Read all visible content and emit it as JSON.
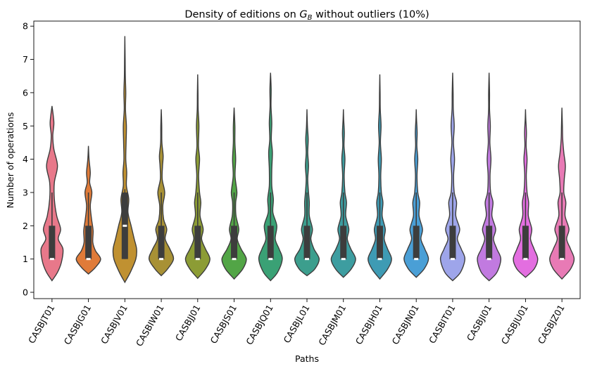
{
  "chart_data": {
    "type": "violin",
    "title_prefix": "Density of editions on ",
    "title_symbol_main": "G",
    "title_symbol_sub": "B",
    "title_suffix": " without outliers (10%)",
    "xlabel": "Paths",
    "ylabel": "Number of operations",
    "ylim": [
      0,
      8
    ],
    "yticks": [
      0,
      1,
      2,
      3,
      4,
      5,
      6,
      7,
      8
    ],
    "grid": false,
    "categories": [
      "CASBJT01",
      "CASBJG01",
      "CASBJV01",
      "CASBIW01",
      "CASBJJ01",
      "CASBJS01",
      "CASBJQ01",
      "CASBJL01",
      "CASBJM01",
      "CASBJH01",
      "CASBJN01",
      "CASBIT01",
      "CASBJI01",
      "CASBJU01",
      "CASBJZ01"
    ],
    "colors": [
      "#e8788a",
      "#e07b39",
      "#c09131",
      "#a89135",
      "#8c9c35",
      "#52a546",
      "#3aa175",
      "#3c9e8d",
      "#3d9da0",
      "#3e9bb4",
      "#4a9fd6",
      "#9ea5ea",
      "#c17ae0",
      "#e36ee0",
      "#e87ab5"
    ],
    "violins": [
      {
        "min": 0.35,
        "max": 5.6,
        "q1": 1,
        "median": 1,
        "q3": 2,
        "whisker_high": 3,
        "density": [
          [
            0.35,
            0.05
          ],
          [
            0.6,
            0.35
          ],
          [
            0.9,
            0.6
          ],
          [
            1.3,
            0.7
          ],
          [
            1.6,
            0.4
          ],
          [
            1.9,
            0.55
          ],
          [
            2.3,
            0.3
          ],
          [
            2.8,
            0.15
          ],
          [
            3.3,
            0.15
          ],
          [
            3.8,
            0.35
          ],
          [
            4.3,
            0.12
          ],
          [
            4.7,
            0.05
          ],
          [
            5.1,
            0.12
          ],
          [
            5.6,
            0.02
          ]
        ]
      },
      {
        "min": 0.55,
        "max": 4.4,
        "q1": 1,
        "median": 1,
        "q3": 2,
        "whisker_high": 3,
        "density": [
          [
            0.55,
            0.05
          ],
          [
            0.75,
            0.45
          ],
          [
            1.0,
            0.78
          ],
          [
            1.25,
            0.45
          ],
          [
            1.5,
            0.28
          ],
          [
            1.85,
            0.3
          ],
          [
            2.2,
            0.2
          ],
          [
            2.6,
            0.12
          ],
          [
            3.0,
            0.22
          ],
          [
            3.3,
            0.08
          ],
          [
            3.6,
            0.12
          ],
          [
            4.0,
            0.04
          ],
          [
            4.4,
            0.02
          ]
        ]
      },
      {
        "min": 0.3,
        "max": 7.7,
        "q1": 1,
        "median": 2,
        "q3": 3,
        "whisker_high": 3.1,
        "density": [
          [
            0.3,
            0.05
          ],
          [
            0.6,
            0.35
          ],
          [
            1.0,
            0.7
          ],
          [
            1.3,
            0.75
          ],
          [
            1.6,
            0.6
          ],
          [
            2.0,
            0.4
          ],
          [
            2.4,
            0.2
          ],
          [
            2.8,
            0.25
          ],
          [
            3.2,
            0.1
          ],
          [
            3.6,
            0.12
          ],
          [
            4.0,
            0.06
          ],
          [
            4.5,
            0.08
          ],
          [
            5.0,
            0.1
          ],
          [
            5.5,
            0.04
          ],
          [
            6.0,
            0.06
          ],
          [
            6.5,
            0.03
          ],
          [
            7.0,
            0.02
          ],
          [
            7.7,
            0.01
          ]
        ]
      },
      {
        "min": 0.5,
        "max": 5.5,
        "q1": 1,
        "median": 1,
        "q3": 2,
        "whisker_high": 3,
        "density": [
          [
            0.5,
            0.05
          ],
          [
            0.7,
            0.4
          ],
          [
            1.0,
            0.78
          ],
          [
            1.3,
            0.55
          ],
          [
            1.6,
            0.25
          ],
          [
            1.9,
            0.35
          ],
          [
            2.2,
            0.15
          ],
          [
            2.6,
            0.1
          ],
          [
            3.0,
            0.22
          ],
          [
            3.4,
            0.06
          ],
          [
            3.8,
            0.08
          ],
          [
            4.1,
            0.12
          ],
          [
            4.5,
            0.04
          ],
          [
            5.0,
            0.03
          ],
          [
            5.5,
            0.01
          ]
        ]
      },
      {
        "min": 0.42,
        "max": 6.55,
        "q1": 1,
        "median": 1,
        "q3": 2,
        "whisker_high": 3,
        "density": [
          [
            0.42,
            0.05
          ],
          [
            0.7,
            0.5
          ],
          [
            1.0,
            0.78
          ],
          [
            1.3,
            0.5
          ],
          [
            1.6,
            0.25
          ],
          [
            1.9,
            0.35
          ],
          [
            2.3,
            0.15
          ],
          [
            2.7,
            0.2
          ],
          [
            3.0,
            0.12
          ],
          [
            3.5,
            0.06
          ],
          [
            4.0,
            0.12
          ],
          [
            4.4,
            0.05
          ],
          [
            5.0,
            0.08
          ],
          [
            5.5,
            0.03
          ],
          [
            6.0,
            0.02
          ],
          [
            6.55,
            0.01
          ]
        ]
      },
      {
        "min": 0.4,
        "max": 5.55,
        "q1": 1,
        "median": 1,
        "q3": 2,
        "whisker_high": 3,
        "density": [
          [
            0.4,
            0.05
          ],
          [
            0.7,
            0.55
          ],
          [
            1.0,
            0.78
          ],
          [
            1.3,
            0.45
          ],
          [
            1.6,
            0.2
          ],
          [
            1.9,
            0.3
          ],
          [
            2.3,
            0.12
          ],
          [
            2.7,
            0.1
          ],
          [
            3.0,
            0.18
          ],
          [
            3.5,
            0.06
          ],
          [
            4.0,
            0.1
          ],
          [
            4.5,
            0.05
          ],
          [
            5.0,
            0.05
          ],
          [
            5.55,
            0.01
          ]
        ]
      },
      {
        "min": 0.35,
        "max": 6.6,
        "q1": 1,
        "median": 1,
        "q3": 2,
        "whisker_high": 3,
        "density": [
          [
            0.35,
            0.05
          ],
          [
            0.6,
            0.45
          ],
          [
            1.0,
            0.75
          ],
          [
            1.3,
            0.55
          ],
          [
            1.6,
            0.3
          ],
          [
            2.0,
            0.4
          ],
          [
            2.4,
            0.15
          ],
          [
            2.8,
            0.18
          ],
          [
            3.2,
            0.08
          ],
          [
            3.7,
            0.08
          ],
          [
            4.2,
            0.12
          ],
          [
            4.6,
            0.05
          ],
          [
            5.1,
            0.08
          ],
          [
            5.6,
            0.03
          ],
          [
            6.1,
            0.04
          ],
          [
            6.6,
            0.01
          ]
        ]
      },
      {
        "min": 0.5,
        "max": 5.5,
        "q1": 1,
        "median": 1,
        "q3": 2,
        "whisker_high": 3,
        "density": [
          [
            0.5,
            0.05
          ],
          [
            0.7,
            0.5
          ],
          [
            1.0,
            0.78
          ],
          [
            1.3,
            0.45
          ],
          [
            1.6,
            0.25
          ],
          [
            1.9,
            0.35
          ],
          [
            2.3,
            0.15
          ],
          [
            2.7,
            0.15
          ],
          [
            3.0,
            0.1
          ],
          [
            3.4,
            0.05
          ],
          [
            3.8,
            0.1
          ],
          [
            4.2,
            0.05
          ],
          [
            4.6,
            0.08
          ],
          [
            5.0,
            0.03
          ],
          [
            5.5,
            0.01
          ]
        ]
      },
      {
        "min": 0.45,
        "max": 5.5,
        "q1": 1,
        "median": 1,
        "q3": 2,
        "whisker_high": 3,
        "density": [
          [
            0.45,
            0.05
          ],
          [
            0.7,
            0.5
          ],
          [
            1.0,
            0.78
          ],
          [
            1.3,
            0.48
          ],
          [
            1.6,
            0.25
          ],
          [
            1.9,
            0.35
          ],
          [
            2.3,
            0.15
          ],
          [
            2.7,
            0.2
          ],
          [
            3.0,
            0.1
          ],
          [
            3.5,
            0.05
          ],
          [
            4.0,
            0.1
          ],
          [
            4.4,
            0.04
          ],
          [
            4.8,
            0.06
          ],
          [
            5.2,
            0.02
          ],
          [
            5.5,
            0.01
          ]
        ]
      },
      {
        "min": 0.4,
        "max": 6.55,
        "q1": 1,
        "median": 1,
        "q3": 2,
        "whisker_high": 3,
        "density": [
          [
            0.4,
            0.05
          ],
          [
            0.7,
            0.5
          ],
          [
            1.0,
            0.75
          ],
          [
            1.3,
            0.5
          ],
          [
            1.6,
            0.28
          ],
          [
            1.9,
            0.35
          ],
          [
            2.3,
            0.15
          ],
          [
            2.7,
            0.2
          ],
          [
            3.0,
            0.1
          ],
          [
            3.5,
            0.06
          ],
          [
            4.0,
            0.1
          ],
          [
            4.5,
            0.04
          ],
          [
            5.0,
            0.08
          ],
          [
            5.5,
            0.03
          ],
          [
            6.0,
            0.02
          ],
          [
            6.55,
            0.01
          ]
        ]
      },
      {
        "min": 0.45,
        "max": 5.5,
        "q1": 1,
        "median": 1,
        "q3": 2,
        "whisker_high": 3,
        "density": [
          [
            0.45,
            0.05
          ],
          [
            0.7,
            0.5
          ],
          [
            1.0,
            0.78
          ],
          [
            1.3,
            0.55
          ],
          [
            1.6,
            0.3
          ],
          [
            1.9,
            0.4
          ],
          [
            2.3,
            0.18
          ],
          [
            2.7,
            0.22
          ],
          [
            3.0,
            0.1
          ],
          [
            3.5,
            0.05
          ],
          [
            4.0,
            0.1
          ],
          [
            4.4,
            0.04
          ],
          [
            4.8,
            0.06
          ],
          [
            5.2,
            0.02
          ],
          [
            5.5,
            0.01
          ]
        ]
      },
      {
        "min": 0.35,
        "max": 6.6,
        "q1": 1,
        "median": 1,
        "q3": 2,
        "whisker_high": 3,
        "density": [
          [
            0.35,
            0.05
          ],
          [
            0.6,
            0.5
          ],
          [
            1.0,
            0.78
          ],
          [
            1.3,
            0.55
          ],
          [
            1.6,
            0.3
          ],
          [
            1.9,
            0.45
          ],
          [
            2.3,
            0.2
          ],
          [
            2.7,
            0.25
          ],
          [
            3.0,
            0.1
          ],
          [
            3.5,
            0.06
          ],
          [
            4.0,
            0.12
          ],
          [
            4.5,
            0.05
          ],
          [
            5.0,
            0.1
          ],
          [
            5.5,
            0.04
          ],
          [
            6.0,
            0.03
          ],
          [
            6.6,
            0.01
          ]
        ]
      },
      {
        "min": 0.35,
        "max": 6.6,
        "q1": 1,
        "median": 1,
        "q3": 2,
        "whisker_high": 3,
        "density": [
          [
            0.35,
            0.05
          ],
          [
            0.6,
            0.5
          ],
          [
            1.0,
            0.75
          ],
          [
            1.3,
            0.5
          ],
          [
            1.6,
            0.28
          ],
          [
            1.9,
            0.42
          ],
          [
            2.3,
            0.18
          ],
          [
            2.7,
            0.25
          ],
          [
            3.0,
            0.1
          ],
          [
            3.5,
            0.06
          ],
          [
            4.0,
            0.12
          ],
          [
            4.5,
            0.05
          ],
          [
            5.0,
            0.08
          ],
          [
            5.5,
            0.03
          ],
          [
            6.0,
            0.03
          ],
          [
            6.6,
            0.01
          ]
        ]
      },
      {
        "min": 0.45,
        "max": 5.5,
        "q1": 1,
        "median": 1,
        "q3": 2,
        "whisker_high": 3,
        "density": [
          [
            0.45,
            0.05
          ],
          [
            0.7,
            0.55
          ],
          [
            1.0,
            0.78
          ],
          [
            1.3,
            0.55
          ],
          [
            1.6,
            0.32
          ],
          [
            1.9,
            0.4
          ],
          [
            2.3,
            0.18
          ],
          [
            2.7,
            0.2
          ],
          [
            3.0,
            0.1
          ],
          [
            3.5,
            0.05
          ],
          [
            4.0,
            0.1
          ],
          [
            4.4,
            0.04
          ],
          [
            4.8,
            0.06
          ],
          [
            5.2,
            0.02
          ],
          [
            5.5,
            0.01
          ]
        ]
      },
      {
        "min": 0.4,
        "max": 5.55,
        "q1": 1,
        "median": 1,
        "q3": 2,
        "whisker_high": 3,
        "density": [
          [
            0.4,
            0.05
          ],
          [
            0.7,
            0.55
          ],
          [
            1.0,
            0.78
          ],
          [
            1.3,
            0.55
          ],
          [
            1.6,
            0.3
          ],
          [
            1.9,
            0.45
          ],
          [
            2.3,
            0.2
          ],
          [
            2.7,
            0.25
          ],
          [
            3.0,
            0.12
          ],
          [
            3.4,
            0.15
          ],
          [
            3.8,
            0.22
          ],
          [
            4.2,
            0.12
          ],
          [
            4.6,
            0.05
          ],
          [
            5.0,
            0.03
          ],
          [
            5.55,
            0.01
          ]
        ]
      }
    ]
  }
}
